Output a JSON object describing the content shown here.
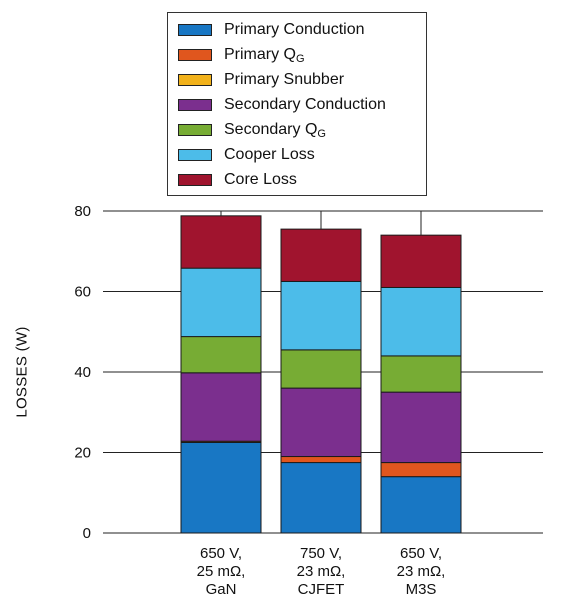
{
  "chart_data": {
    "type": "bar",
    "stacked": true,
    "ylabel": "LOSSES (W)",
    "xlabel": "",
    "ylim": [
      0,
      80
    ],
    "yticks": [
      "0",
      "20",
      "40",
      "60",
      "80"
    ],
    "grid": true,
    "legend_position": "top",
    "categories": [
      [
        "650 V,",
        "25 mΩ,",
        "GaN"
      ],
      [
        "750 V,",
        "23 mΩ,",
        "CJFET"
      ],
      [
        "650 V,",
        "23 mΩ,",
        "M3S"
      ]
    ],
    "series": [
      {
        "name": "Primary Conduction",
        "name_main": "Primary Conduction",
        "name_sub": "",
        "color": "#1877c4",
        "values": [
          22.5,
          17.5,
          14
        ]
      },
      {
        "name": "Primary QG",
        "name_main": "Primary Q",
        "name_sub": "G",
        "color": "#e0561e",
        "values": [
          0.3,
          1.5,
          3.5
        ]
      },
      {
        "name": "Primary Snubber",
        "name_main": "Primary Snubber",
        "name_sub": "",
        "color": "#f2b21b",
        "values": [
          0,
          0,
          0
        ]
      },
      {
        "name": "Secondary Conduction",
        "name_main": "Secondary Conduction",
        "name_sub": "",
        "color": "#7b2f8e",
        "values": [
          17,
          17,
          17.5
        ]
      },
      {
        "name": "Secondary QG",
        "name_main": "Secondary Q",
        "name_sub": "G",
        "color": "#77ac34",
        "values": [
          9,
          9.5,
          9
        ]
      },
      {
        "name": "Cooper Loss",
        "name_main": "Cooper Loss",
        "name_sub": "",
        "color": "#4cbce9",
        "values": [
          17,
          17,
          17
        ]
      },
      {
        "name": "Core Loss",
        "name_main": "Core Loss",
        "name_sub": "",
        "color": "#a0142e",
        "values": [
          13,
          13,
          13
        ]
      }
    ]
  }
}
